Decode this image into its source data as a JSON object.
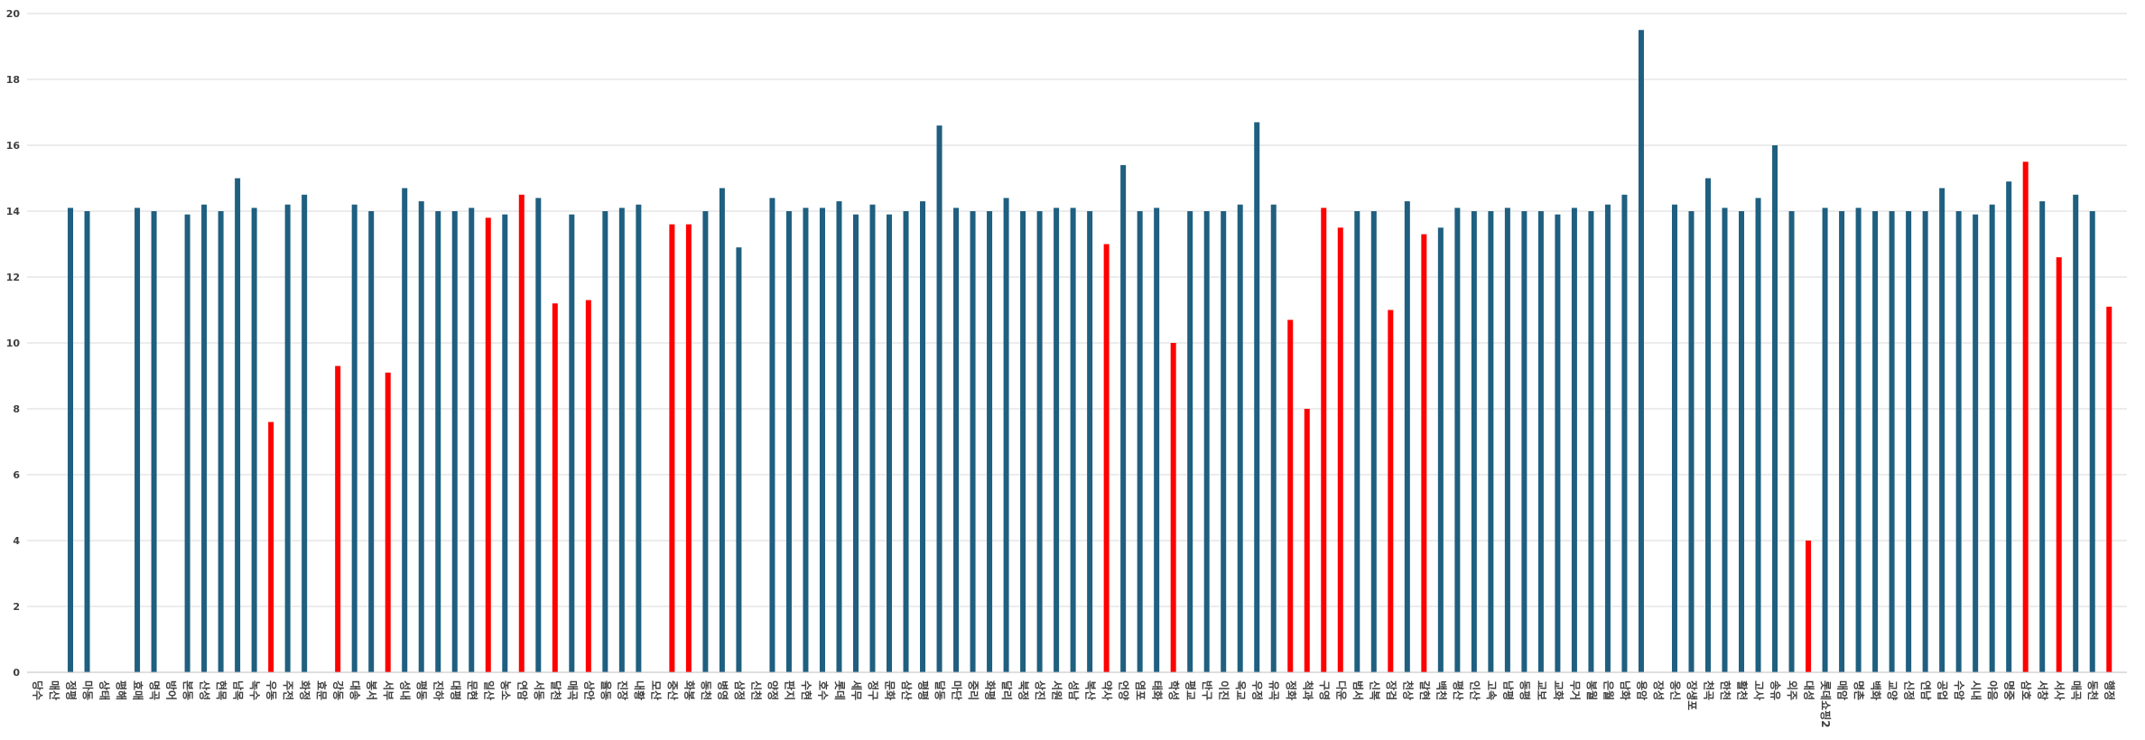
{
  "chart_data": {
    "type": "bar",
    "categories": [
      "당수",
      "매산",
      "정평",
      "마동",
      "상태",
      "평해",
      "효매",
      "명곡",
      "방어",
      "본동",
      "산성",
      "현목",
      "남목",
      "녹수",
      "우동",
      "주전",
      "화정",
      "효문",
      "강동",
      "대송",
      "봉서",
      "서부",
      "성내",
      "평동",
      "진하",
      "대평",
      "문현",
      "일산",
      "농소",
      "연암",
      "서동",
      "달천",
      "매곡",
      "상안",
      "율동",
      "진장",
      "내황",
      "모산",
      "중산",
      "화봉",
      "동천",
      "병영",
      "삼정",
      "신천",
      "양정",
      "판지",
      "수현",
      "호수",
      "롯데",
      "세무",
      "정구",
      "문화",
      "삼산",
      "평평",
      "달동",
      "마단",
      "중리",
      "화평",
      "달리",
      "북정",
      "상진",
      "서원",
      "성남",
      "복산",
      "약사",
      "언양",
      "염포",
      "태화",
      "학성",
      "평교",
      "반구",
      "이진",
      "옥교",
      "우정",
      "유곡",
      "정화",
      "척과",
      "구영",
      "다운",
      "범서",
      "신복",
      "장검",
      "천상",
      "갈현",
      "백천",
      "평산",
      "인산",
      "고속",
      "남평",
      "동평",
      "교보",
      "교화",
      "무거",
      "봉월",
      "은월",
      "남화",
      "용암",
      "장성",
      "옹신",
      "장생포",
      "천곡",
      "한천",
      "활천",
      "고사",
      "송유",
      "외주",
      "대성",
      "롯데쇼핑2",
      "매암",
      "명촌",
      "백화",
      "교양",
      "신정",
      "연남",
      "공업",
      "수암",
      "시내",
      "야음",
      "명중",
      "삼호",
      "서창",
      "서사",
      "매곡",
      "동천",
      "행정"
    ],
    "values": [
      null,
      null,
      14.1,
      14.0,
      null,
      null,
      14.1,
      14.0,
      null,
      13.9,
      14.2,
      14.0,
      15.0,
      14.1,
      7.6,
      14.2,
      14.5,
      null,
      9.3,
      14.2,
      14.0,
      9.1,
      14.7,
      14.3,
      14.0,
      14.0,
      14.1,
      13.8,
      13.9,
      14.5,
      14.4,
      11.2,
      13.9,
      11.3,
      14.0,
      14.1,
      14.2,
      null,
      13.6,
      13.6,
      14.0,
      14.7,
      12.9,
      null,
      14.4,
      14.0,
      14.1,
      14.1,
      14.3,
      13.9,
      14.2,
      13.9,
      14.0,
      14.3,
      16.6,
      14.1,
      14.0,
      14.0,
      14.4,
      14.0,
      14.0,
      14.1,
      14.1,
      14.0,
      13.0,
      15.4,
      14.0,
      14.1,
      10.0,
      14.0,
      14.0,
      14.0,
      14.2,
      16.7,
      14.2,
      10.7,
      8.0,
      14.1,
      13.5,
      14.0,
      14.0,
      11.0,
      14.3,
      13.3,
      13.5,
      14.1,
      14.0,
      14.0,
      14.1,
      14.0,
      14.0,
      13.9,
      14.1,
      14.0,
      14.2,
      14.5,
      19.5,
      null,
      14.2,
      14.0,
      15.0,
      14.1,
      14.0,
      14.4,
      16.0,
      14.0,
      4.0,
      14.1,
      14.0,
      14.1,
      14.0,
      14.0,
      14.0,
      14.0,
      14.7,
      14.0,
      13.9,
      14.2,
      14.9,
      15.5,
      14.3,
      12.6,
      14.5,
      14.0,
      11.1
    ],
    "highlight_indices": [
      14,
      18,
      21,
      27,
      29,
      31,
      33,
      38,
      39,
      64,
      68,
      75,
      76,
      77,
      78,
      81,
      83,
      106,
      119,
      121,
      124
    ],
    "ylim": [
      0,
      20
    ],
    "yticks": [
      0,
      2,
      4,
      6,
      8,
      10,
      12,
      14,
      16,
      18,
      20
    ],
    "grid": true,
    "legend": "none",
    "colors": {
      "bar": "#1f5f80",
      "highlight": "#ff0000",
      "grid": "#d9d9d9",
      "axis": "#bfbfbf"
    }
  }
}
